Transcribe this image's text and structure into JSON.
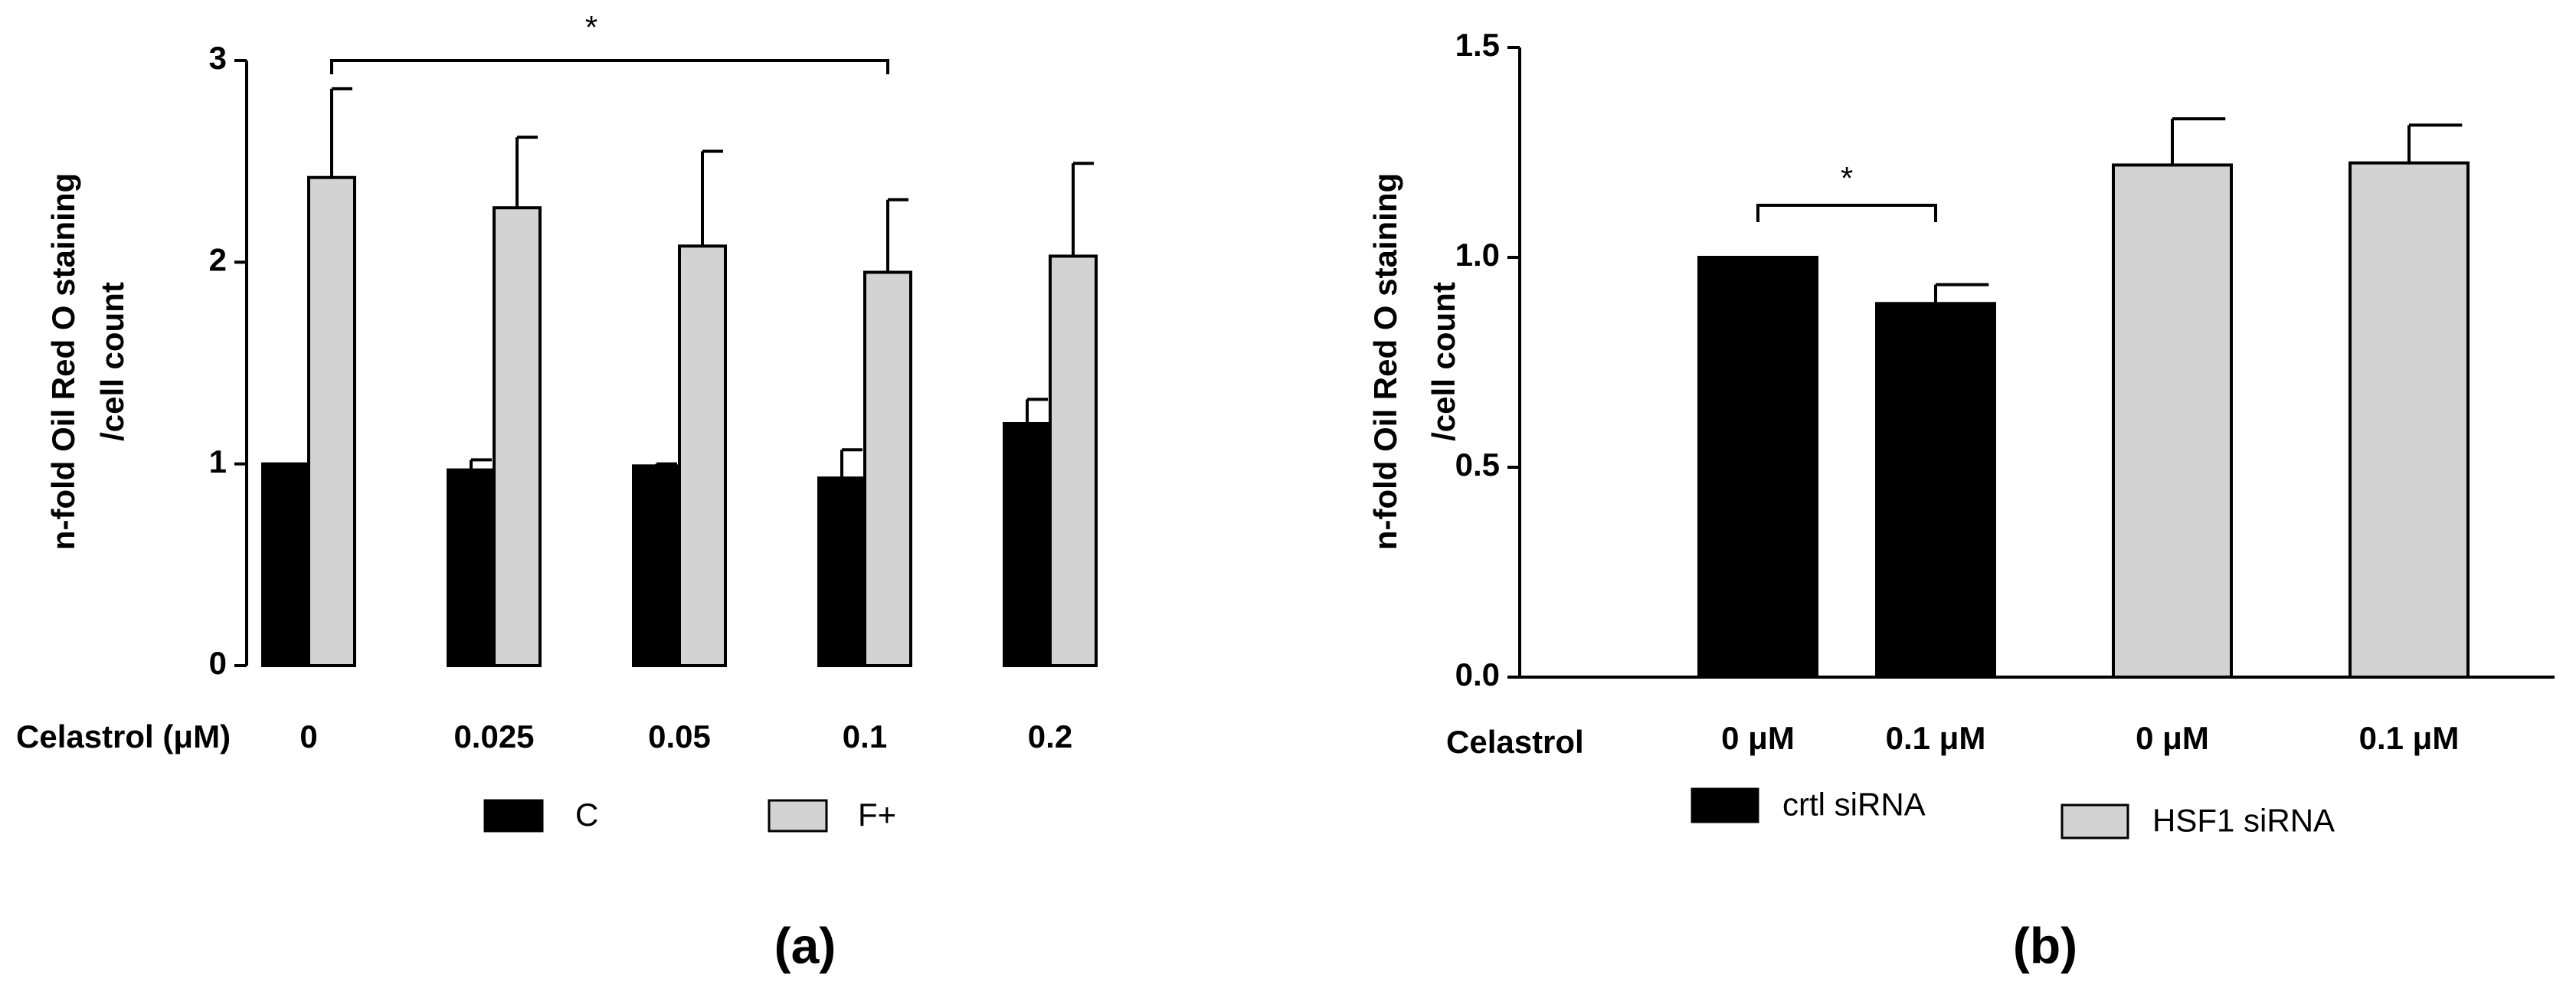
{
  "chart_data": [
    {
      "type": "bar",
      "panel": "(a)",
      "ylabel": [
        "n-fold Oil Red O staining",
        "/cell count"
      ],
      "xlabel": "Celastrol (μM)",
      "categories": [
        "0",
        "0.025",
        "0.05",
        "0.1",
        "0.2"
      ],
      "series": [
        {
          "name": "C",
          "color": "#000000",
          "values": [
            1.0,
            0.97,
            0.99,
            0.93,
            1.2
          ],
          "errors": [
            0,
            0.05,
            0.01,
            0.14,
            0.12
          ]
        },
        {
          "name": "F+",
          "color": "#d3d3d3",
          "values": [
            2.42,
            2.27,
            2.08,
            1.95,
            2.03
          ],
          "errors": [
            0.44,
            0.35,
            0.47,
            0.36,
            0.46
          ]
        }
      ],
      "ylim": [
        0,
        3
      ],
      "yticks": [
        0,
        1,
        2,
        3
      ],
      "annotation": "*"
    },
    {
      "type": "bar",
      "panel": "(b)",
      "ylabel": [
        "n-fold Oil Red O staining",
        "/cell count"
      ],
      "xlabel": "Celastrol",
      "categories": [
        "0 μM",
        "0.1 μM",
        "0 μM",
        "0.1 μM"
      ],
      "series": [
        {
          "name": "crtl siRNA",
          "color": "#000000",
          "values": [
            1.0,
            0.89,
            null,
            null
          ],
          "errors": [
            0,
            0.045,
            null,
            null
          ]
        },
        {
          "name": "HSF1 siRNA",
          "color": "#d3d3d3",
          "values": [
            null,
            null,
            1.22,
            1.225
          ],
          "errors": [
            null,
            null,
            0.11,
            0.09
          ]
        }
      ],
      "ylim": [
        0,
        1.5
      ],
      "yticks": [
        {
          "value": 0,
          "label": "0.0"
        },
        {
          "value": 0.5,
          "label": "0.5"
        },
        {
          "value": 1,
          "label": "1.0"
        },
        {
          "value": 1.5,
          "label": "1.5"
        }
      ],
      "annotation": "*"
    }
  ]
}
